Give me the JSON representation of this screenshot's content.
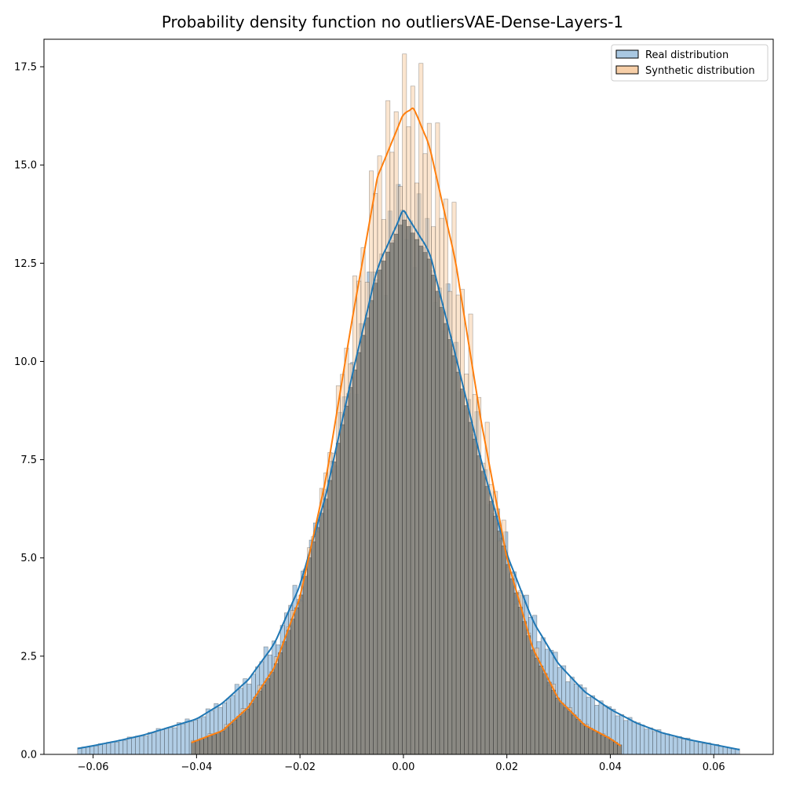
{
  "chart_data": {
    "type": "bar",
    "title": "Probability density function no outliersVAE-Dense-Layers-1",
    "xlabel": "",
    "ylabel": "",
    "xlim": [
      -0.0695,
      0.0715
    ],
    "ylim": [
      0,
      18.2
    ],
    "x_ticks": [
      -0.06,
      -0.04,
      -0.02,
      0.0,
      0.02,
      0.04,
      0.06
    ],
    "x_tick_labels": [
      "−0.06",
      "−0.04",
      "−0.02",
      "0.00",
      "0.02",
      "0.04",
      "0.06"
    ],
    "y_ticks": [
      0,
      2.5,
      5.0,
      7.5,
      10.0,
      12.5,
      15.0,
      17.5
    ],
    "y_tick_labels": [
      "0.0",
      "2.5",
      "5.0",
      "7.5",
      "10.0",
      "12.5",
      "15.0",
      "17.5"
    ],
    "grid": false,
    "legend_position": "top-right",
    "series": [
      {
        "name": "Real distribution",
        "kind": "histogram+kde",
        "color": "#1f77b4",
        "fill": "#a9c8e2",
        "x_range": [
          -0.063,
          0.065
        ],
        "kde_points": [
          [
            -0.063,
            0.15
          ],
          [
            -0.06,
            0.22
          ],
          [
            -0.055,
            0.35
          ],
          [
            -0.05,
            0.5
          ],
          [
            -0.045,
            0.7
          ],
          [
            -0.04,
            0.9
          ],
          [
            -0.035,
            1.3
          ],
          [
            -0.03,
            1.9
          ],
          [
            -0.025,
            2.8
          ],
          [
            -0.02,
            4.3
          ],
          [
            -0.015,
            6.6
          ],
          [
            -0.01,
            9.6
          ],
          [
            -0.005,
            12.4
          ],
          [
            0.0,
            13.85
          ],
          [
            0.005,
            12.8
          ],
          [
            0.01,
            10.2
          ],
          [
            0.015,
            7.5
          ],
          [
            0.02,
            5.1
          ],
          [
            0.025,
            3.4
          ],
          [
            0.03,
            2.3
          ],
          [
            0.035,
            1.6
          ],
          [
            0.04,
            1.15
          ],
          [
            0.045,
            0.8
          ],
          [
            0.05,
            0.55
          ],
          [
            0.055,
            0.38
          ],
          [
            0.06,
            0.25
          ],
          [
            0.065,
            0.12
          ]
        ]
      },
      {
        "name": "Synthetic distribution",
        "kind": "histogram+kde",
        "color": "#ff7f0e",
        "fill": "#f7cfa8",
        "x_range": [
          -0.041,
          0.042
        ],
        "kde_points": [
          [
            -0.041,
            0.3
          ],
          [
            -0.035,
            0.6
          ],
          [
            -0.03,
            1.2
          ],
          [
            -0.025,
            2.2
          ],
          [
            -0.02,
            4.0
          ],
          [
            -0.015,
            7.0
          ],
          [
            -0.01,
            11.0
          ],
          [
            -0.005,
            14.7
          ],
          [
            0.0,
            16.3
          ],
          [
            0.002,
            16.45
          ],
          [
            0.005,
            15.5
          ],
          [
            0.01,
            12.6
          ],
          [
            0.015,
            8.5
          ],
          [
            0.02,
            5.0
          ],
          [
            0.025,
            2.7
          ],
          [
            0.03,
            1.4
          ],
          [
            0.035,
            0.75
          ],
          [
            0.04,
            0.4
          ],
          [
            0.042,
            0.22
          ]
        ]
      }
    ]
  }
}
